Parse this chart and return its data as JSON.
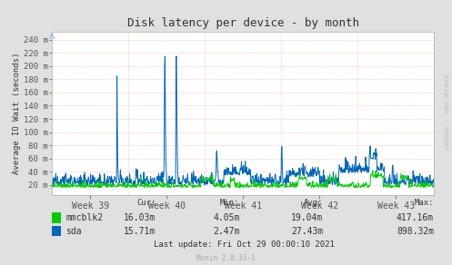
{
  "title": "Disk latency per device - by month",
  "ylabel": "Average IO Wait (seconds)",
  "watermark": "RRDTOOL / TOBI OETIKER",
  "munin_version": "Munin 2.0.33-1",
  "last_update": "Last update: Fri Oct 29 00:00:10 2021",
  "x_tick_labels": [
    "Week 39",
    "Week 40",
    "Week 41",
    "Week 42",
    "Week 43"
  ],
  "y_tick_labels": [
    "20 m",
    "40 m",
    "60 m",
    "80 m",
    "100 m",
    "120 m",
    "140 m",
    "160 m",
    "180 m",
    "200 m",
    "220 m",
    "240 m"
  ],
  "y_tick_values": [
    0.02,
    0.04,
    0.06,
    0.08,
    0.1,
    0.12,
    0.14,
    0.16,
    0.18,
    0.2,
    0.22,
    0.24
  ],
  "ylim": [
    0.005,
    0.252
  ],
  "bg_color": "#e0e0e0",
  "plot_bg_color": "#ffffff",
  "grid_color": "#ff9999",
  "mmcblk2_color": "#00cc00",
  "sda_color": "#0066bb",
  "legend": [
    {
      "label": "mmcblk2",
      "cur": "16.03m",
      "min": "4.05m",
      "avg": "19.04m",
      "max": "417.16m"
    },
    {
      "label": "sda",
      "cur": "15.71m",
      "min": "2.47m",
      "avg": "27.43m",
      "max": "898.32m"
    }
  ],
  "n_points": 900
}
